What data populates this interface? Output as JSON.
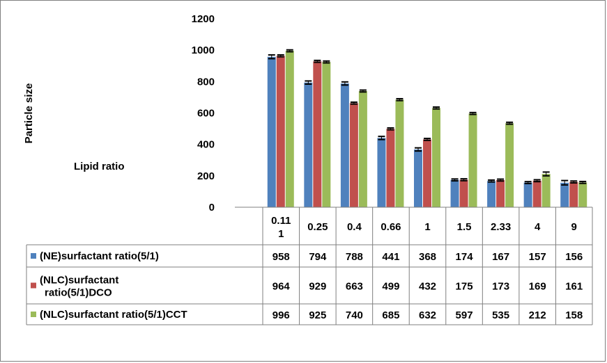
{
  "chart_data": {
    "type": "bar",
    "ylabel": "Particle size",
    "xlabel": "Lipid ratio",
    "ylim": [
      0,
      1200
    ],
    "yticks": [
      "0",
      "200",
      "400",
      "600",
      "800",
      "1000",
      "1200"
    ],
    "categories": [
      "0.111",
      "0.25",
      "0.4",
      "0.66",
      "1",
      "1.5",
      "2.33",
      "4",
      "9"
    ],
    "category_display": [
      [
        "0.11",
        "1"
      ],
      [
        "0.25"
      ],
      [
        "0.4"
      ],
      [
        "0.66"
      ],
      [
        "1"
      ],
      [
        "1.5"
      ],
      [
        "2.33"
      ],
      [
        "4"
      ],
      [
        "9"
      ]
    ],
    "series": [
      {
        "name": "(NE)surfactant ratio(5/1)",
        "name_lines": [
          "(NE)surfactant ratio(5/1)"
        ],
        "color": "#4f81bd",
        "values": [
          958,
          794,
          788,
          441,
          368,
          174,
          167,
          157,
          156
        ],
        "errors": [
          12,
          10,
          10,
          10,
          10,
          6,
          6,
          6,
          14
        ]
      },
      {
        "name": "(NLC)surfactant ratio(5/1)DCO",
        "name_lines": [
          "(NLC)surfactant",
          "ratio(5/1)DCO"
        ],
        "color": "#c0504d",
        "values": [
          964,
          929,
          663,
          499,
          432,
          175,
          173,
          169,
          161
        ],
        "errors": [
          6,
          6,
          6,
          6,
          6,
          6,
          6,
          6,
          6
        ]
      },
      {
        "name": "(NLC)surfactant ratio(5/1)CCT",
        "name_lines": [
          "(NLC)surfactant ratio(5/1)CCT"
        ],
        "color": "#9bbb59",
        "values": [
          996,
          925,
          740,
          685,
          632,
          597,
          535,
          212,
          158
        ],
        "errors": [
          6,
          6,
          6,
          6,
          6,
          6,
          6,
          12,
          6
        ]
      }
    ],
    "grid": false,
    "legend": "data-table-left",
    "error_bars": true
  }
}
